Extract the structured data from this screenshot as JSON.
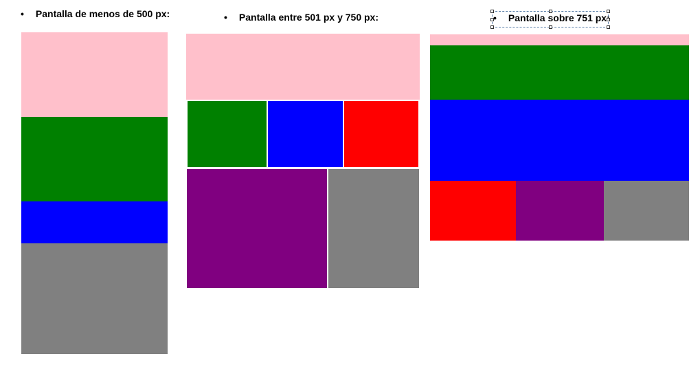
{
  "bullet": "•",
  "colors": {
    "pink": "#ffc0cb",
    "green": "#008000",
    "blue": "#0000ff",
    "red": "#ff0000",
    "purple": "#800080",
    "gray": "#808080",
    "selection": "#5a7fa8"
  },
  "sections": [
    {
      "heading": "Pantalla de menos de 500 px:"
    },
    {
      "heading": "Pantalla entre 501 px y 750 px:"
    },
    {
      "heading": "Pantalla sobre 751 px:"
    }
  ]
}
